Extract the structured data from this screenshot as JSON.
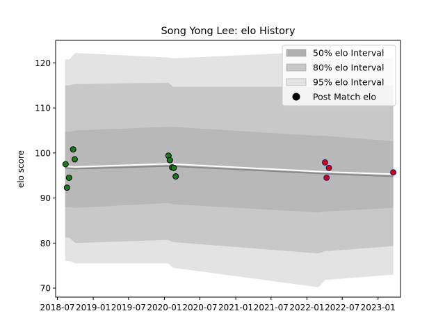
{
  "chart_data": {
    "type": "line",
    "title": "Song Yong Lee: elo History",
    "xlabel": "",
    "ylabel": "elo score",
    "x_ticks": [
      "2018-07",
      "2019-01",
      "2019-07",
      "2020-01",
      "2020-07",
      "2021-01",
      "2021-07",
      "2022-01",
      "2022-07",
      "2023-01"
    ],
    "y_ticks": [
      70,
      80,
      90,
      100,
      110,
      120
    ],
    "xlim": [
      "2018-06-22",
      "2023-04-26"
    ],
    "ylim": [
      68,
      125
    ],
    "grid": false,
    "legend_position": "top-right",
    "legend": [
      {
        "label": "50% elo Interval",
        "color": "#b0b0b0",
        "kind": "patch"
      },
      {
        "label": "80% elo Interval",
        "color": "#c8c8c8",
        "kind": "patch"
      },
      {
        "label": "95% elo Interval",
        "color": "#e3e3e3",
        "kind": "patch"
      },
      {
        "label": "Post Match elo",
        "color": "#000000",
        "kind": "marker"
      }
    ],
    "intervals": {
      "x": [
        "2018-08-10",
        "2018-09-01",
        "2018-10-01",
        "2020-01-20",
        "2020-02-15",
        "2022-03-01",
        "2022-04-05",
        "2023-03-20"
      ],
      "p95_upper": [
        120.8,
        120.8,
        122.2,
        121.2,
        121.0,
        122.5,
        121.0,
        121.0
      ],
      "p95_lower": [
        76.0,
        76.0,
        75.5,
        75.5,
        74.5,
        70.2,
        71.8,
        73.0
      ],
      "p80_upper": [
        115.0,
        115.0,
        115.3,
        115.6,
        114.7,
        114.7,
        115.0,
        115.0
      ],
      "p80_lower": [
        81.2,
        81.2,
        80.0,
        80.7,
        80.2,
        77.7,
        78.2,
        79.3
      ],
      "p50_upper": [
        104.7,
        104.7,
        105.0,
        105.8,
        105.8,
        103.8,
        103.8,
        102.6
      ],
      "p50_lower": [
        88.0,
        88.0,
        87.8,
        88.9,
        88.6,
        86.8,
        87.0,
        87.8
      ]
    },
    "mean_line": {
      "x": [
        "2018-08-10",
        "2018-10-01",
        "2020-01-20",
        "2022-04-05",
        "2023-03-20"
      ],
      "y": [
        96.7,
        96.5,
        97.1,
        95.4,
        94.8
      ],
      "color": "#888888"
    },
    "median_line": {
      "x": [
        "2018-08-10",
        "2018-10-01",
        "2020-01-20",
        "2022-04-05",
        "2023-03-20"
      ],
      "y": [
        97.0,
        96.9,
        97.6,
        95.8,
        95.3
      ],
      "color": "#ffffff"
    },
    "series": [
      {
        "name": "Post Match elo",
        "x": [
          "2018-08-12",
          "2018-08-19",
          "2018-08-30",
          "2018-09-20",
          "2018-09-28",
          "2020-01-22",
          "2020-01-29",
          "2020-02-10",
          "2020-02-18",
          "2020-02-28",
          "2022-04-04",
          "2022-04-12",
          "2022-04-24",
          "2023-03-20"
        ],
        "y": [
          97.5,
          92.3,
          94.5,
          100.8,
          98.6,
          99.4,
          98.4,
          96.8,
          96.7,
          94.8,
          97.9,
          94.5,
          96.7,
          95.7
        ],
        "fill": [
          "#1a7a1a",
          "#1a7a1a",
          "#1a7a1a",
          "#1a7a1a",
          "#1a7a1a",
          "#1a7a1a",
          "#1a7a1a",
          "#1a7a1a",
          "#1a7a1a",
          "#1a7a1a",
          "#cc0000",
          "#cc0000",
          "#cc0000",
          "#cc0000"
        ]
      }
    ],
    "colors": {
      "p95": "#e3e3e3",
      "p80": "#c8c8c8",
      "p50": "#b8b8b8",
      "marker_edge_win": "#000000",
      "marker_edge_loss": "#1a1a8a"
    }
  }
}
